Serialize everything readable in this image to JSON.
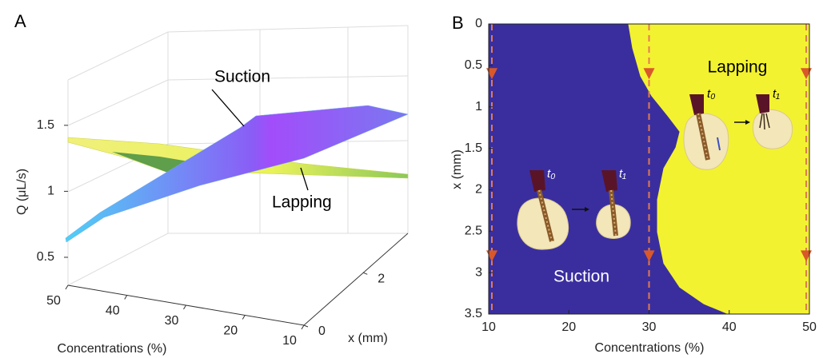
{
  "chart_data": [
    {
      "type": "surface3d",
      "panel_label": "A",
      "xlabel": "Concentrations (%)",
      "ylabel": "x (mm)",
      "zlabel": "Q (μL/s)",
      "xlim": [
        50,
        10
      ],
      "xticks": [
        50,
        40,
        30,
        20,
        10
      ],
      "ylim": [
        0,
        3.5
      ],
      "yticks": [
        0,
        2
      ],
      "zlim": [
        0.35,
        1.85
      ],
      "zticks": [
        0.5,
        1,
        1.5
      ],
      "annotations": [
        "Suction",
        "Lapping"
      ]
    },
    {
      "type": "regionmap",
      "panel_label": "B",
      "xlabel": "Concentrations (%)",
      "ylabel": "x (mm)",
      "xlim": [
        10,
        50
      ],
      "xticks": [
        10,
        20,
        30,
        40,
        50
      ],
      "ylim": [
        0,
        3.5
      ],
      "yticks": [
        0,
        0.5,
        1,
        1.5,
        2,
        2.5,
        3,
        3.5
      ],
      "colors": {
        "Suction": "#3a2e9f",
        "Lapping": "#f3f230",
        "guide": "#e07a52"
      },
      "boundary": {
        "x": [
          27.4,
          27.9,
          28.9,
          30.3,
          32.3,
          33.8,
          33.3,
          31.8,
          31.0,
          31.0,
          31.8,
          33.8,
          36.8,
          39.8
        ],
        "y": [
          0,
          0.29,
          0.63,
          0.87,
          1.11,
          1.3,
          1.49,
          1.74,
          2.12,
          2.51,
          2.89,
          3.18,
          3.38,
          3.5
        ]
      },
      "guide_x": [
        10,
        30,
        50
      ],
      "marker_y": [
        0.6,
        2.8
      ],
      "annotations": [
        "Lapping",
        "Suction",
        "t₀",
        "t₁",
        "t₀",
        "t₁"
      ]
    }
  ]
}
